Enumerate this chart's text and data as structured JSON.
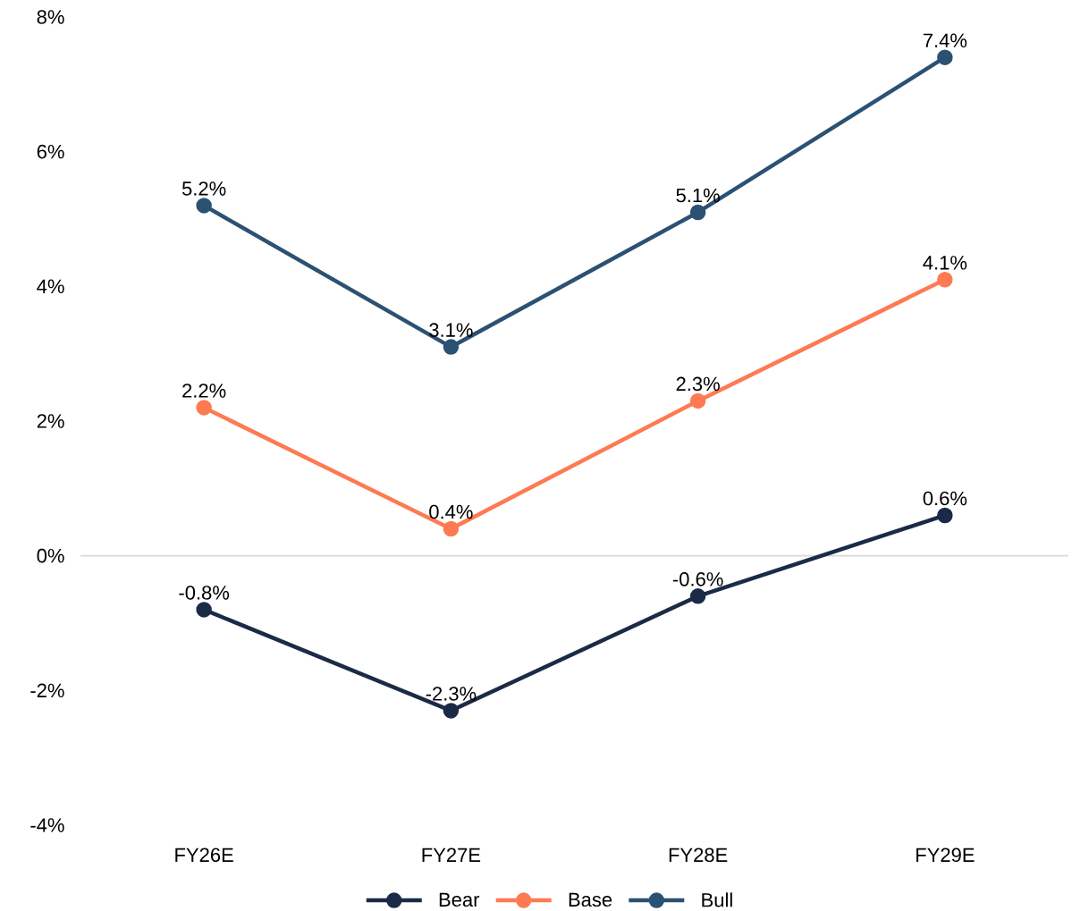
{
  "chart_data": {
    "type": "line",
    "categories": [
      "FY26E",
      "FY27E",
      "FY28E",
      "FY29E"
    ],
    "series": [
      {
        "name": "Bear",
        "color": "#1b2a47",
        "values": [
          -0.8,
          -2.3,
          -0.6,
          0.6
        ],
        "value_labels": [
          "-0.8%",
          "-2.3%",
          "-0.6%",
          "0.6%"
        ]
      },
      {
        "name": "Base",
        "color": "#fe7a52",
        "values": [
          2.2,
          0.4,
          2.3,
          4.1
        ],
        "value_labels": [
          "2.2%",
          "0.4%",
          "2.3%",
          "4.1%"
        ]
      },
      {
        "name": "Bull",
        "color": "#2b5173",
        "values": [
          5.2,
          3.1,
          5.1,
          7.4
        ],
        "value_labels": [
          "5.2%",
          "3.1%",
          "5.1%",
          "7.4%"
        ]
      }
    ],
    "ylim": [
      -4,
      8
    ],
    "yticks": [
      {
        "value": -4,
        "label": "-4%"
      },
      {
        "value": -2,
        "label": "-2%"
      },
      {
        "value": 0,
        "label": "0%"
      },
      {
        "value": 2,
        "label": "2%"
      },
      {
        "value": 4,
        "label": "4%"
      },
      {
        "value": 6,
        "label": "6%"
      },
      {
        "value": 8,
        "label": "8%"
      }
    ],
    "legend": "bottom",
    "marker": "circle",
    "line_style": "solid"
  }
}
